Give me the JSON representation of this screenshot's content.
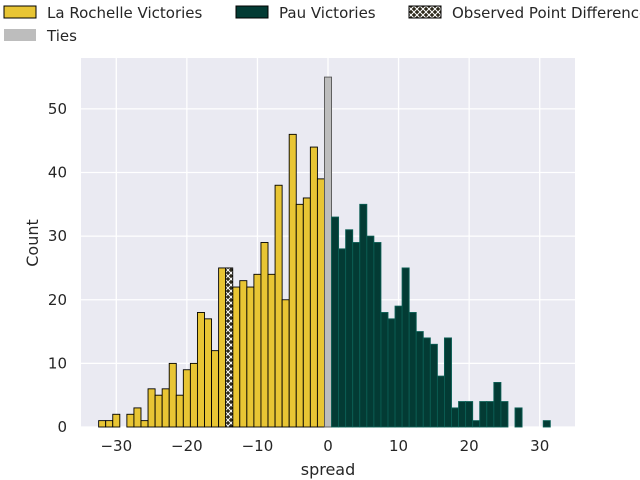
{
  "chart_data": {
    "type": "bar",
    "title": "",
    "xlabel": "spread",
    "ylabel": "Count",
    "xlim": [
      -35,
      35
    ],
    "ylim": [
      0,
      58
    ],
    "xticks": [
      -30,
      -20,
      -10,
      0,
      10,
      20,
      30
    ],
    "xtick_labels": [
      "−30",
      "−20",
      "−10",
      "0",
      "10",
      "20",
      "30"
    ],
    "yticks": [
      0,
      10,
      20,
      30,
      40,
      50
    ],
    "ytick_labels": [
      "0",
      "10",
      "20",
      "30",
      "40",
      "50"
    ],
    "grid": true,
    "legend_placement": "top, above plot",
    "colors": {
      "la_rochelle": "#e8c534",
      "pau": "#033b34",
      "ties": "#bdbdbd",
      "observed": "#2e2a1c",
      "background": "#eaeaf2"
    },
    "legend": [
      {
        "key": "la_rochelle",
        "label": "La Rochelle Victories"
      },
      {
        "key": "pau",
        "label": "Pau Victories"
      },
      {
        "key": "observed",
        "label": "Observed Point Difference"
      },
      {
        "key": "ties",
        "label": "Ties"
      }
    ],
    "series": [
      {
        "name": "La Rochelle Victories",
        "key": "la_rochelle",
        "x": [
          -32,
          -31,
          -30,
          -28,
          -27,
          -26,
          -25,
          -24,
          -23,
          -22,
          -21,
          -20,
          -19,
          -18,
          -17,
          -16,
          -15,
          -13,
          -12,
          -11,
          -10,
          -9,
          -8,
          -7,
          -6,
          -5,
          -4,
          -3,
          -2,
          -1
        ],
        "values": [
          1,
          1,
          2,
          2,
          3,
          1,
          6,
          5,
          6,
          10,
          5,
          9,
          10,
          18,
          17,
          12,
          25,
          22,
          23,
          22,
          24,
          29,
          24,
          38,
          20,
          46,
          35,
          36,
          44,
          39
        ]
      },
      {
        "name": "Observed Point Difference",
        "key": "observed",
        "x": [
          -14
        ],
        "values": [
          25
        ]
      },
      {
        "name": "Ties",
        "key": "ties",
        "x": [
          0
        ],
        "values": [
          55
        ]
      },
      {
        "name": "Pau Victories",
        "key": "pau",
        "x": [
          1,
          2,
          3,
          4,
          5,
          6,
          7,
          8,
          9,
          10,
          11,
          12,
          13,
          14,
          15,
          16,
          17,
          18,
          19,
          20,
          21,
          22,
          23,
          24,
          25,
          27,
          31
        ],
        "values": [
          33,
          28,
          31,
          29,
          35,
          30,
          29,
          18,
          17,
          19,
          25,
          18,
          15,
          14,
          13,
          8,
          14,
          3,
          4,
          4,
          1,
          4,
          4,
          7,
          4,
          3,
          1
        ]
      }
    ]
  }
}
